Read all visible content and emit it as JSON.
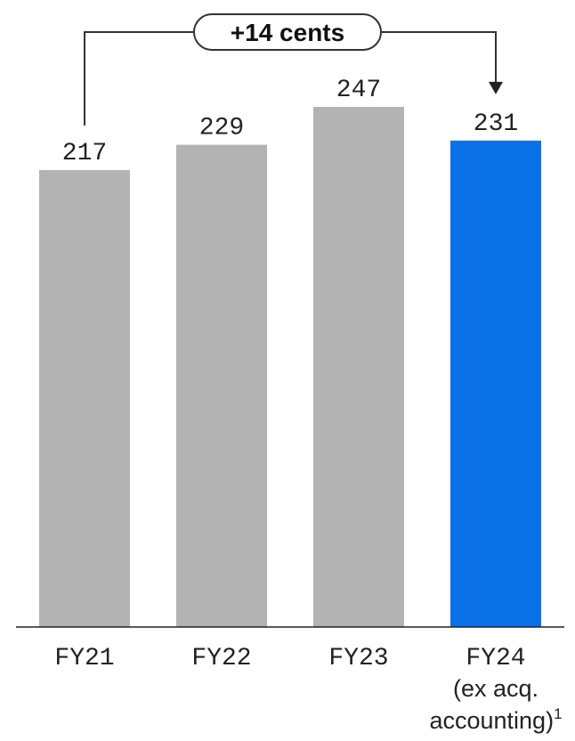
{
  "chart_data": {
    "type": "bar",
    "title": "",
    "xlabel": "",
    "ylabel": "",
    "categories": [
      "FY21",
      "FY22",
      "FY23",
      "FY24"
    ],
    "category_sublabels": [
      "",
      "",
      "",
      "(ex acq."
    ],
    "category_sublabels_2": [
      "",
      "",
      "",
      "accounting)"
    ],
    "footnote_marker": "1",
    "values": [
      217,
      229,
      247,
      231
    ],
    "ylim": [
      0,
      247
    ],
    "bar_colors": [
      "#b3b3b3",
      "#b3b3b3",
      "#b3b3b3",
      "#0a72e6"
    ],
    "grid": false,
    "annotation": {
      "text": "+14 cents",
      "from_category": "FY21",
      "to_category": "FY24"
    }
  }
}
